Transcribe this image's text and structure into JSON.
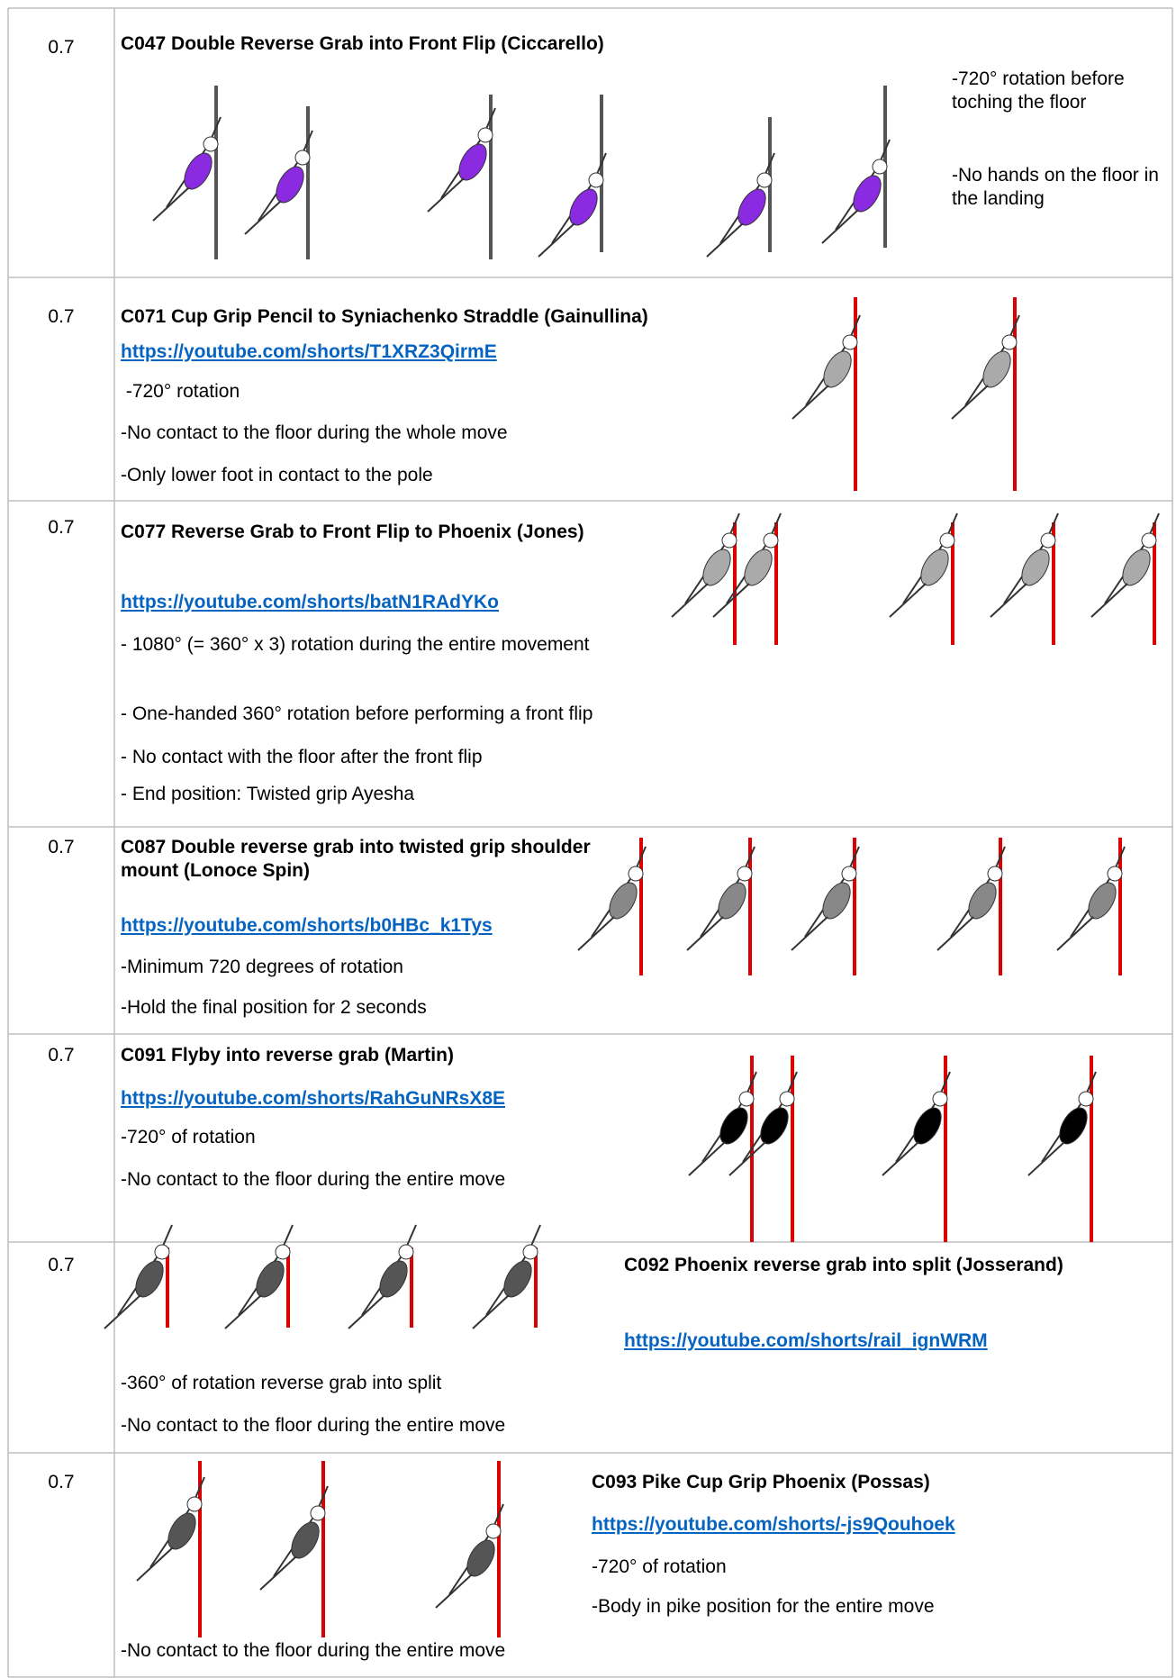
{
  "rows": [
    {
      "value": "0.7",
      "title": "C047 Double Reverse Grab into Front Flip (Ciccarello)",
      "notes": [
        "-720° rotation before toching the floor",
        "-No hands on the floor in the landing"
      ]
    },
    {
      "value": "0.7",
      "title": "C071 Cup Grip Pencil to Syniachenko Straddle (Gainullina)",
      "link": "https://youtube.com/shorts/T1XRZ3QirmE",
      "notes": [
        " -720° rotation",
        "-No contact to the floor during the whole move",
        "-Only lower foot in contact to the pole"
      ]
    },
    {
      "value": "0.7",
      "title": "C077 Reverse Grab to Front Flip to Phoenix (Jones)",
      "link": "https://youtube.com/shorts/batN1RAdYKo",
      "notes": [
        "- 1080° (= 360° x 3) rotation during the entire movement",
        "- One-handed 360° rotation before performing a front flip",
        "- No contact with the floor after the front flip",
        "- End position: Twisted grip Ayesha"
      ]
    },
    {
      "value": "0.7",
      "title": "C087 Double reverse grab into twisted grip shoulder mount (Lonoce Spin)",
      "link": "https://youtube.com/shorts/b0HBc_k1Tys",
      "notes": [
        "-Minimum 720 degrees of rotation",
        "-Hold the final position for 2 seconds"
      ]
    },
    {
      "value": "0.7",
      "title": "C091 Flyby into reverse grab (Martin)",
      "link": "https://youtube.com/shorts/RahGuNRsX8E",
      "notes": [
        "-720° of rotation",
        "-No contact to the floor during the entire move"
      ]
    },
    {
      "value": "0.7",
      "title": "C092 Phoenix reverse grab into split (Josserand)",
      "link": "https://youtube.com/shorts/rail_ignWRM",
      "notes": [
        "-360° of rotation reverse grab into split",
        "-No contact to the floor during the entire move"
      ]
    },
    {
      "value": "0.7",
      "title": "C093 Pike Cup Grip Phoenix (Possas)",
      "link": "https://youtube.com/shorts/-js9Qouhoek",
      "notes": [
        "-720° of rotation",
        "-Body in pike position for the entire move",
        "-No contact to the floor during the entire move"
      ]
    }
  ]
}
